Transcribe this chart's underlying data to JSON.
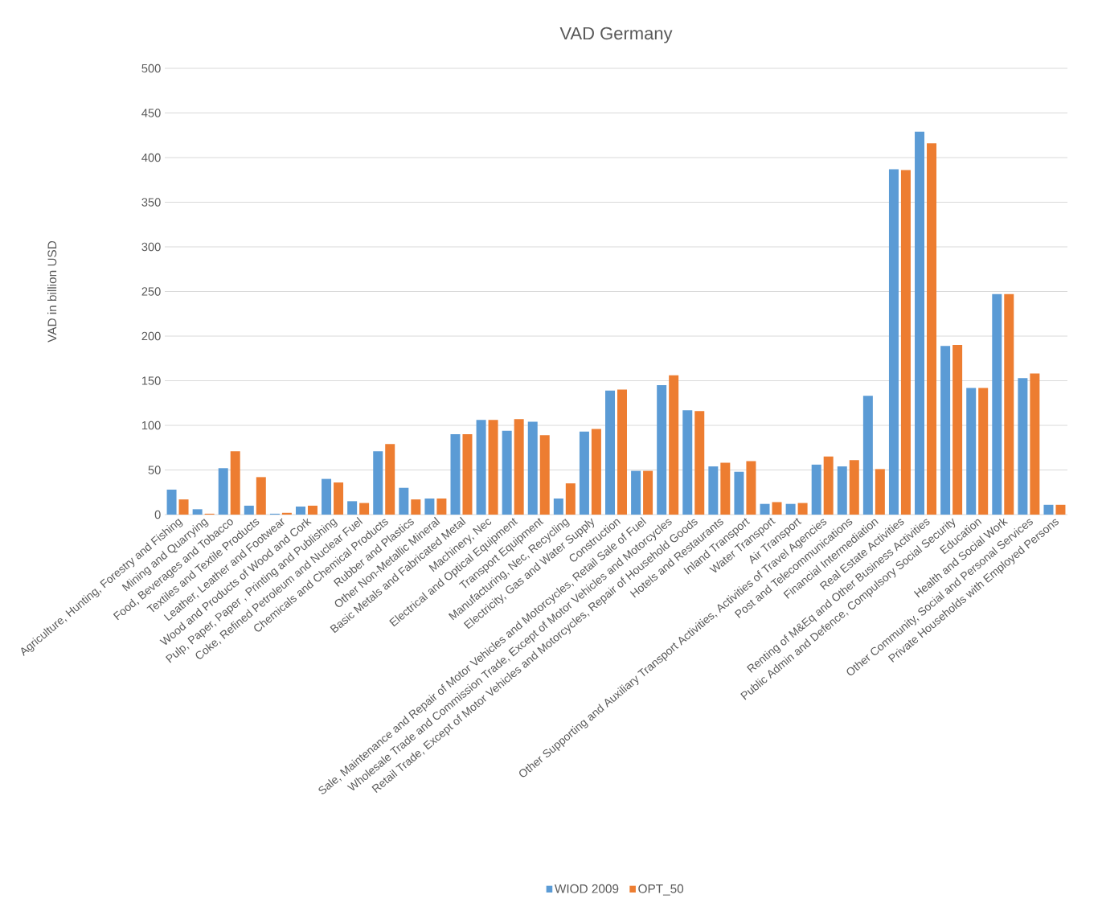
{
  "chart_data": {
    "type": "bar",
    "title": "VAD Germany",
    "ylabel": "VAD in billion USD",
    "categories": [
      "Agriculture, Hunting, Forestry and Fishing",
      "Mining and Quarrying",
      "Food, Beverages and Tobacco",
      "Textiles and Textile Products",
      "Leather, Leather and Footwear",
      "Wood and Products of Wood and Cork",
      "Pulp, Paper, Paper , Printing and Publishing",
      "Coke, Refined Petroleum and Nuclear Fuel",
      "Chemicals and Chemical Products",
      "Rubber and Plastics",
      "Other Non-Metallic Mineral",
      "Basic Metals and Fabricated Metal",
      "Machinery, Nec",
      "Electrical and Optical Equipment",
      "Transport Equipment",
      "Manufacturing, Nec, Recycling",
      "Electricity, Gas and Water Supply",
      "Construction",
      "Sale, Maintenance and Repair of Motor Vehicles and Motorcycles, Retail Sale of Fuel",
      "Wholesale Trade and Commission Trade, Except of Motor Vehicles and Motorcycles",
      "Retail Trade, Except of Motor Vehicles and Motorcycles, Repair of Household Goods",
      "Hotels and Restaurants",
      "Inland Transport",
      "Water Transport",
      "Air Transport",
      "Other Supporting and Auxiliary Transport Activities, Activities of Travel Agencies",
      "Post and Telecommunications",
      "Financial Intermediation",
      "Real Estate Activities",
      "Renting of M&Eq and Other Business Activities",
      "Public Admin and Defence, Compulsory Social Security",
      "Education",
      "Health and Social Work",
      "Other Community, Social and Personal Services",
      "Private Households with Employed Persons"
    ],
    "series": [
      {
        "name": "WIOD 2009",
        "color": "#5b9bd5",
        "values": [
          28,
          6,
          52,
          10,
          1,
          9,
          40,
          15,
          71,
          30,
          18,
          90,
          106,
          94,
          104,
          18,
          93,
          139,
          49,
          145,
          117,
          54,
          48,
          12,
          12,
          56,
          54,
          133,
          387,
          429,
          189,
          142,
          247,
          153,
          11
        ]
      },
      {
        "name": "OPT_50",
        "color": "#ed7d31",
        "values": [
          17,
          1,
          71,
          42,
          2,
          10,
          36,
          13,
          79,
          17,
          18,
          90,
          106,
          107,
          89,
          35,
          96,
          140,
          49,
          156,
          116,
          58,
          60,
          14,
          13,
          65,
          61,
          51,
          386,
          416,
          190,
          142,
          247,
          158,
          11
        ]
      }
    ],
    "ylim": [
      0,
      500
    ],
    "yticks": [
      0,
      50,
      100,
      150,
      200,
      250,
      300,
      350,
      400,
      450,
      500
    ],
    "grid": "y",
    "legend": "bottom"
  }
}
